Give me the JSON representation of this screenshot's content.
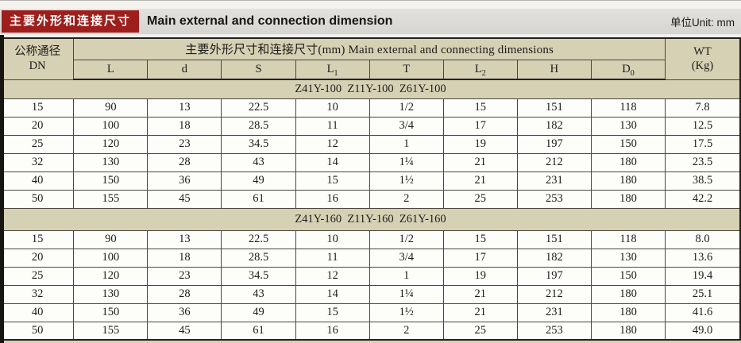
{
  "page": {
    "title_cn": "主要外形和连接尺寸",
    "title_en": "Main external and connection dimension",
    "unit_label": "单位Unit: mm"
  },
  "colors": {
    "accent_red": "#9e1e1c",
    "header_tan": "#d6d0b4",
    "row_white": "#fdfdfa",
    "border_dark": "#23211c"
  },
  "table": {
    "dn_header_line1": "公称通径",
    "dn_header_line2": "DN",
    "group_header": "主要外形尺寸和连接尺寸(mm) Main external and connecting dimensions",
    "wt_header_line1": "WT",
    "wt_header_line2": "(Kg)",
    "columns": [
      {
        "base": "L",
        "sub": ""
      },
      {
        "base": "d",
        "sub": ""
      },
      {
        "base": "S",
        "sub": ""
      },
      {
        "base": "L",
        "sub": "1"
      },
      {
        "base": "T",
        "sub": ""
      },
      {
        "base": "L",
        "sub": "2"
      },
      {
        "base": "H",
        "sub": ""
      },
      {
        "base": "D",
        "sub": "0"
      }
    ],
    "sections": [
      {
        "label": "Z41Y-100  Z11Y-100  Z61Y-100",
        "rows": [
          [
            "15",
            "90",
            "13",
            "22.5",
            "10",
            "1/2",
            "15",
            "151",
            "118",
            "7.8"
          ],
          [
            "20",
            "100",
            "18",
            "28.5",
            "11",
            "3/4",
            "17",
            "182",
            "130",
            "12.5"
          ],
          [
            "25",
            "120",
            "23",
            "34.5",
            "12",
            "1",
            "19",
            "197",
            "150",
            "17.5"
          ],
          [
            "32",
            "130",
            "28",
            "43",
            "14",
            "1¼",
            "21",
            "212",
            "180",
            "23.5"
          ],
          [
            "40",
            "150",
            "36",
            "49",
            "15",
            "1½",
            "21",
            "231",
            "180",
            "38.5"
          ],
          [
            "50",
            "155",
            "45",
            "61",
            "16",
            "2",
            "25",
            "253",
            "180",
            "42.2"
          ]
        ]
      },
      {
        "label": "Z41Y-160  Z11Y-160  Z61Y-160",
        "rows": [
          [
            "15",
            "90",
            "13",
            "22.5",
            "10",
            "1/2",
            "15",
            "151",
            "118",
            "8.0"
          ],
          [
            "20",
            "100",
            "18",
            "28.5",
            "11",
            "3/4",
            "17",
            "182",
            "130",
            "13.6"
          ],
          [
            "25",
            "120",
            "23",
            "34.5",
            "12",
            "1",
            "19",
            "197",
            "150",
            "19.4"
          ],
          [
            "32",
            "130",
            "28",
            "43",
            "14",
            "1¼",
            "21",
            "212",
            "180",
            "25.1"
          ],
          [
            "40",
            "150",
            "36",
            "49",
            "15",
            "1½",
            "21",
            "231",
            "180",
            "41.6"
          ],
          [
            "50",
            "155",
            "45",
            "61",
            "16",
            "2",
            "25",
            "253",
            "180",
            "49.0"
          ]
        ]
      }
    ]
  }
}
